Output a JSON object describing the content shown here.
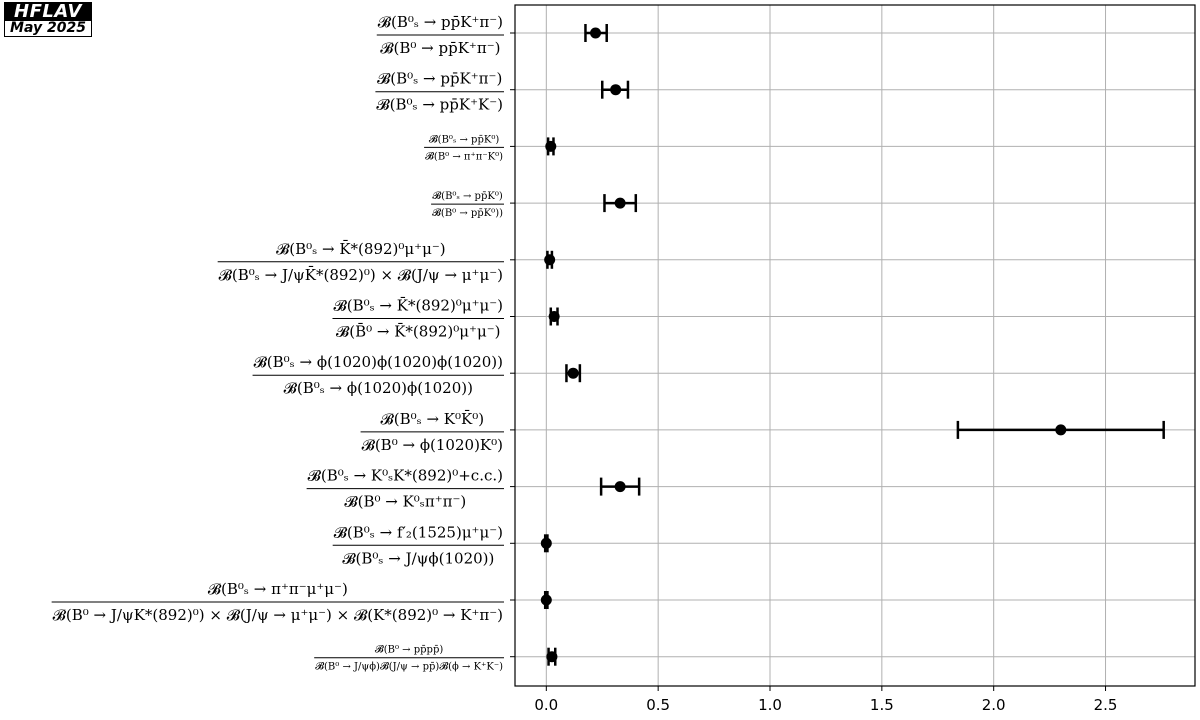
{
  "logo": {
    "name": "HFLAV",
    "date": "May 2025"
  },
  "chart_data": {
    "type": "scatter",
    "orientation": "horizontal-errorbar",
    "title": "",
    "xlabel": "",
    "ylabel": "",
    "xlim": [
      -0.14,
      2.9
    ],
    "xticks": [
      0.0,
      0.5,
      1.0,
      1.5,
      2.0,
      2.5
    ],
    "xtick_labels": [
      "0.0",
      "0.5",
      "1.0",
      "1.5",
      "2.0",
      "2.5"
    ],
    "grid": true,
    "color": "#000000",
    "categories": [
      {
        "num": "𝓑(B⁰ₛ → pp̄K⁺π⁻)",
        "den": "𝓑(B⁰ → pp̄K⁺π⁻)",
        "size": "normal"
      },
      {
        "num": "𝓑(B⁰ₛ → pp̄K⁺π⁻)",
        "den": "𝓑(B⁰ₛ → pp̄K⁺K⁻)",
        "size": "normal"
      },
      {
        "num": "𝓑(B⁰ₛ → pp̄K⁰)",
        "den": "𝓑(B⁰ → π⁺π⁻K⁰)",
        "size": "small"
      },
      {
        "num": "𝓑(B⁰ₛ → pp̄K⁰)",
        "den": "𝓑(B⁰ → pp̄K⁰))",
        "size": "small"
      },
      {
        "num": "𝓑(B⁰ₛ → K̄*(892)⁰μ⁺μ⁻)",
        "den": "𝓑(B⁰ₛ → J/ψK̄*(892)⁰) × 𝓑(J/ψ → μ⁺μ⁻)",
        "size": "normal"
      },
      {
        "num": "𝓑(B⁰ₛ → K̄*(892)⁰μ⁺μ⁻)",
        "den": "𝓑(B̄⁰ → K̄*(892)⁰μ⁺μ⁻)",
        "size": "normal"
      },
      {
        "num": "𝓑(B⁰ₛ → ϕ(1020)ϕ(1020)ϕ(1020))",
        "den": "𝓑(B⁰ₛ → ϕ(1020)ϕ(1020))",
        "size": "normal"
      },
      {
        "num": "𝓑(B⁰ₛ → K⁰K̄⁰)",
        "den": "𝓑(B⁰ → ϕ(1020)K⁰)",
        "size": "normal"
      },
      {
        "num": "𝓑(B⁰ₛ → K⁰ₛK*(892)⁰+c.c.)",
        "den": "𝓑(B⁰ → K⁰ₛπ⁺π⁻)",
        "size": "normal"
      },
      {
        "num": "𝓑(B⁰ₛ → f′₂(1525)μ⁺μ⁻)",
        "den": "𝓑(B⁰ₛ → J/ψϕ(1020))",
        "size": "normal"
      },
      {
        "num": "𝓑(B⁰ₛ → π⁺π⁻μ⁺μ⁻)",
        "den": "𝓑(B⁰ → J/ψK*(892)⁰) × 𝓑(J/ψ → μ⁺μ⁻) × 𝓑(K*(892)⁰ → K⁺π⁻)",
        "size": "normal"
      },
      {
        "num": "𝓑(B⁰ → pp̄pp̄)",
        "den": "𝓑(B⁰ → J/ψϕ)𝓑(J/ψ → pp̄)𝓑(ϕ → K⁺K⁻)",
        "size": "small"
      }
    ],
    "series": [
      {
        "values": [
          0.22,
          0.31,
          0.02,
          0.33,
          0.015,
          0.035,
          0.12,
          2.3,
          0.33,
          0.0,
          0.0,
          0.025
        ],
        "err_low": [
          0.045,
          0.06,
          0.012,
          0.07,
          0.01,
          0.015,
          0.03,
          0.46,
          0.085,
          0.005,
          0.005,
          0.015
        ],
        "err_high": [
          0.05,
          0.055,
          0.012,
          0.07,
          0.01,
          0.015,
          0.03,
          0.46,
          0.085,
          0.005,
          0.005,
          0.015
        ]
      }
    ]
  }
}
